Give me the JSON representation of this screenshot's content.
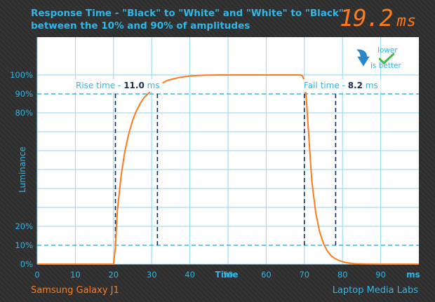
{
  "header": {
    "title_line1": "Response Time - \"Black\" to \"White\" and \"White\" to \"Black\"",
    "title_line2": "between the 10% and 90% of amplitudes",
    "result_value": "19.2",
    "result_unit": "ms"
  },
  "badge": {
    "line1": "lower",
    "line2": "is better"
  },
  "footer": {
    "device": "Samsung Galaxy J1",
    "brand": "Laptop Media Labs"
  },
  "colors": {
    "accent_blue": "#31b6e7",
    "curve_orange": "#ff7a1a",
    "plot_bg": "#ffffff",
    "marker_dash": "#1a2c5a"
  },
  "chart_data": {
    "type": "line",
    "xlabel": "Time",
    "ylabel": "Luminance",
    "x_unit_label": "ms",
    "xlim": [
      0,
      100
    ],
    "ylim": [
      0,
      100
    ],
    "x_ticks": [
      0,
      10,
      20,
      30,
      40,
      50,
      60,
      70,
      80,
      90
    ],
    "y_ticks": [
      {
        "value": 0,
        "label": "0%"
      },
      {
        "value": 10,
        "label": "10%"
      },
      {
        "value": 20,
        "label": "20%"
      },
      {
        "value": 80,
        "label": "80%"
      },
      {
        "value": 90,
        "label": "90%"
      },
      {
        "value": 100,
        "label": "100%"
      }
    ],
    "grid": true,
    "threshold_lines": [
      10,
      90
    ],
    "series": [
      {
        "x": [
          0,
          19.8,
          20,
          20.5,
          21,
          22,
          23,
          24,
          25,
          26,
          27,
          28,
          29,
          30,
          31,
          32,
          33,
          34,
          35,
          37,
          39,
          41,
          43,
          45,
          48,
          52,
          60,
          66,
          69,
          69.5,
          70,
          70.5,
          71,
          71.5,
          72,
          73,
          74,
          75,
          76,
          77,
          78,
          79,
          80,
          81,
          82,
          83,
          84,
          86,
          88,
          90,
          93,
          96,
          100
        ],
        "y": [
          0,
          0,
          0,
          9,
          28,
          47,
          60,
          69,
          76,
          81,
          85,
          88,
          90,
          92,
          93.5,
          95,
          96,
          97,
          97.6,
          98.6,
          99.2,
          99.6,
          99.8,
          99.9,
          100,
          100,
          100,
          100,
          100,
          99.5,
          97,
          88,
          73,
          57,
          43,
          27,
          17,
          11,
          7,
          4.5,
          3,
          2,
          1.3,
          0.8,
          0.5,
          0.3,
          0.2,
          0.1,
          0.05,
          0,
          0,
          0,
          0
        ]
      }
    ],
    "annotations": [
      {
        "label": "Rise time",
        "value": "11.0",
        "unit": "ms",
        "start": 20.5,
        "end": 31.5
      },
      {
        "label": "Fall time",
        "value": "8.2",
        "unit": "ms",
        "start": 70,
        "end": 78.2
      }
    ]
  }
}
